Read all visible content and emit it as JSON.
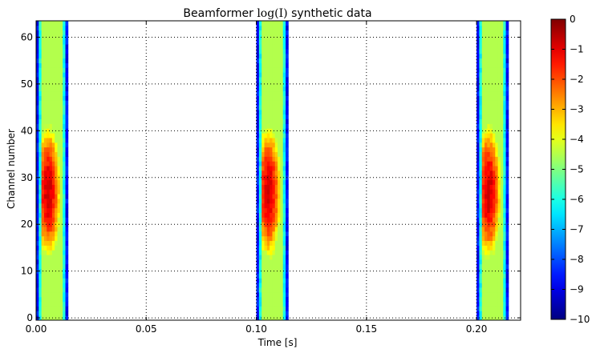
{
  "chart_data": {
    "type": "heatmap",
    "title": {
      "prefix": "Beamformer ",
      "math": "log(I)",
      "suffix": " synthetic data"
    },
    "xlabel": "Time [s]",
    "ylabel": "Channel number",
    "xlim": [
      0.0,
      0.22
    ],
    "ylim": [
      -0.5,
      63.5
    ],
    "x_ticks": [
      0.0,
      0.05,
      0.1,
      0.15,
      0.2
    ],
    "x_tick_labels": [
      "0.00",
      "0.05",
      "0.10",
      "0.15",
      "0.20"
    ],
    "y_ticks": [
      0,
      10,
      20,
      30,
      40,
      50,
      60
    ],
    "y_tick_labels": [
      "0",
      "10",
      "20",
      "30",
      "40",
      "50",
      "60"
    ],
    "grid": true,
    "colormap": "jet",
    "color_range": [
      -10,
      0
    ],
    "colorbar_ticks": [
      0,
      -1,
      -2,
      -3,
      -4,
      -5,
      -6,
      -7,
      -8,
      -9,
      -10
    ],
    "colorbar_tick_labels": [
      "0",
      "−1",
      "−2",
      "−3",
      "−4",
      "−5",
      "−6",
      "−7",
      "−8",
      "−9",
      "−10"
    ],
    "channels": 64,
    "pulses": [
      {
        "start": 0.0,
        "end": 0.0145,
        "peak_time": 0.0055,
        "peak_channel": 27,
        "peak_value": -0.8
      },
      {
        "start": 0.1,
        "end": 0.1145,
        "peak_time": 0.1055,
        "peak_channel": 27,
        "peak_value": -0.8
      },
      {
        "start": 0.2,
        "end": 0.2145,
        "peak_time": 0.2055,
        "peak_channel": 27,
        "peak_value": -0.8
      }
    ],
    "background_value": null
  }
}
